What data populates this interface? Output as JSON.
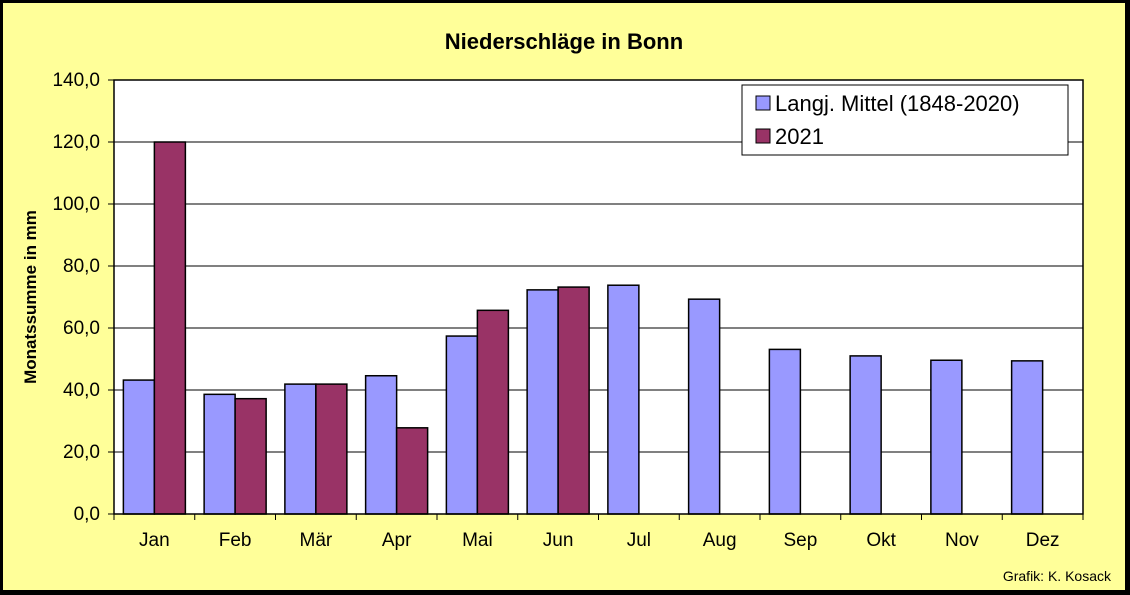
{
  "chart_data": {
    "type": "bar",
    "title": "Niederschläge in Bonn",
    "xlabel": "",
    "ylabel": "Monatssumme in mm",
    "ylim": [
      0,
      140
    ],
    "yticks": [
      "0,0",
      "20,0",
      "40,0",
      "60,0",
      "80,0",
      "100,0",
      "120,0",
      "140,0"
    ],
    "categories": [
      "Jan",
      "Feb",
      "Mär",
      "Apr",
      "Mai",
      "Jun",
      "Jul",
      "Aug",
      "Sep",
      "Okt",
      "Nov",
      "Dez"
    ],
    "series": [
      {
        "name": "Langj. Mittel (1848-2020)",
        "color": "#9999ff",
        "values": [
          43.2,
          38.6,
          41.9,
          44.6,
          57.4,
          72.3,
          73.8,
          69.3,
          53.1,
          51.0,
          49.6,
          49.4
        ]
      },
      {
        "name": "2021",
        "color": "#993366",
        "values": [
          120.0,
          37.2,
          41.9,
          27.8,
          65.7,
          73.2,
          null,
          null,
          null,
          null,
          null,
          null
        ]
      }
    ],
    "grid": true,
    "legend_position": "top-right",
    "plot_background": "#ffffff",
    "page_background": "#ffff99"
  },
  "credit": "Grafik:  K. Kosack"
}
